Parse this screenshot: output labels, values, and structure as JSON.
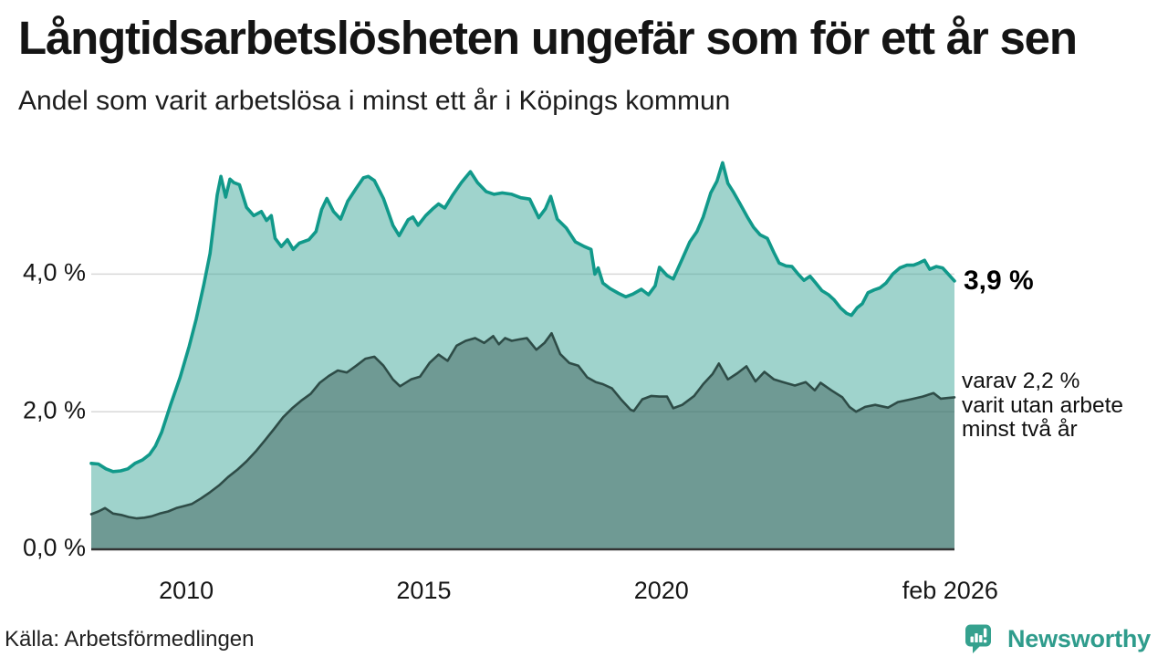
{
  "header": {
    "title": "Långtidsarbetslösheten ungefär som för ett år sen",
    "subtitle": "Andel som varit arbetslösa i minst ett år i Köpings kommun"
  },
  "chart_data": {
    "type": "area",
    "subtype": "overlapping-areas",
    "title": "Långtidsarbetslösheten ungefär som för ett år sen",
    "xlabel": "",
    "ylabel": "",
    "unit": "%",
    "x_range": [
      2008.0,
      2026.17
    ],
    "ylim": [
      0,
      5.9
    ],
    "grid": "horizontal",
    "x_axis": {
      "ticks": [
        {
          "label": "2010",
          "year": 2010
        },
        {
          "label": "2015",
          "year": 2015
        },
        {
          "label": "2020",
          "year": 2020
        },
        {
          "label": "feb 2026",
          "year": 2026.08
        }
      ]
    },
    "y_axis": {
      "ticks": [
        {
          "label": "0,0 %",
          "value": 0
        },
        {
          "label": "2,0 %",
          "value": 2
        },
        {
          "label": "4,0 %",
          "value": 4
        }
      ]
    },
    "series": [
      {
        "name": "arbetslösa minst ett år",
        "line_color": "#11998a",
        "fill_color": "rgba(70,170,158,0.52)",
        "line_width": 3.6,
        "latest_value": "3,9 %",
        "x": [
          2008.0,
          2008.15,
          2008.31,
          2008.46,
          2008.62,
          2008.77,
          2008.92,
          2009.08,
          2009.23,
          2009.35,
          2009.48,
          2009.67,
          2009.87,
          2010.06,
          2010.21,
          2010.37,
          2010.5,
          2010.65,
          2010.73,
          2010.83,
          2010.92,
          2011.0,
          2011.12,
          2011.27,
          2011.42,
          2011.58,
          2011.69,
          2011.79,
          2011.87,
          2012.0,
          2012.13,
          2012.25,
          2012.38,
          2012.58,
          2012.73,
          2012.85,
          2012.96,
          2013.1,
          2013.25,
          2013.4,
          2013.58,
          2013.73,
          2013.83,
          2013.96,
          2014.15,
          2014.35,
          2014.48,
          2014.67,
          2014.77,
          2014.88,
          2015.04,
          2015.19,
          2015.31,
          2015.44,
          2015.6,
          2015.79,
          2015.98,
          2016.13,
          2016.31,
          2016.48,
          2016.65,
          2016.85,
          2017.04,
          2017.23,
          2017.42,
          2017.56,
          2017.67,
          2017.81,
          2018.0,
          2018.19,
          2018.38,
          2018.52,
          2018.6,
          2018.67,
          2018.77,
          2018.92,
          2019.1,
          2019.25,
          2019.4,
          2019.58,
          2019.73,
          2019.87,
          2019.96,
          2020.12,
          2020.25,
          2020.44,
          2020.6,
          2020.75,
          2020.88,
          2021.04,
          2021.17,
          2021.29,
          2021.4,
          2021.52,
          2021.65,
          2021.81,
          2021.94,
          2022.08,
          2022.23,
          2022.37,
          2022.48,
          2022.62,
          2022.75,
          2022.88,
          2023.0,
          2023.13,
          2023.25,
          2023.38,
          2023.52,
          2023.63,
          2023.77,
          2023.9,
          2024.0,
          2024.12,
          2024.23,
          2024.35,
          2024.48,
          2024.6,
          2024.73,
          2024.87,
          2025.02,
          2025.17,
          2025.31,
          2025.42,
          2025.54,
          2025.65,
          2025.79,
          2025.92,
          2026.04,
          2026.17
        ],
        "values": [
          1.25,
          1.24,
          1.17,
          1.13,
          1.14,
          1.17,
          1.25,
          1.3,
          1.38,
          1.5,
          1.7,
          2.1,
          2.5,
          2.95,
          3.35,
          3.85,
          4.3,
          5.15,
          5.42,
          5.12,
          5.38,
          5.33,
          5.3,
          4.97,
          4.85,
          4.91,
          4.78,
          4.85,
          4.52,
          4.4,
          4.5,
          4.36,
          4.45,
          4.5,
          4.62,
          4.94,
          5.1,
          4.91,
          4.8,
          5.06,
          5.25,
          5.4,
          5.42,
          5.36,
          5.1,
          4.71,
          4.56,
          4.79,
          4.83,
          4.71,
          4.85,
          4.95,
          5.02,
          4.96,
          5.14,
          5.33,
          5.49,
          5.33,
          5.2,
          5.16,
          5.18,
          5.16,
          5.11,
          5.09,
          4.82,
          4.95,
          5.13,
          4.8,
          4.67,
          4.47,
          4.4,
          4.36,
          4.0,
          4.09,
          3.87,
          3.79,
          3.72,
          3.67,
          3.71,
          3.78,
          3.7,
          3.83,
          4.1,
          3.98,
          3.93,
          4.22,
          4.47,
          4.62,
          4.83,
          5.18,
          5.35,
          5.62,
          5.32,
          5.19,
          5.03,
          4.83,
          4.68,
          4.57,
          4.52,
          4.31,
          4.16,
          4.12,
          4.11,
          4.0,
          3.91,
          3.97,
          3.87,
          3.76,
          3.7,
          3.63,
          3.51,
          3.43,
          3.4,
          3.51,
          3.57,
          3.73,
          3.77,
          3.8,
          3.87,
          4.0,
          4.09,
          4.13,
          4.13,
          4.16,
          4.2,
          4.07,
          4.11,
          4.09,
          4.0,
          3.9
        ]
      },
      {
        "name": "varav utan arbete minst två år",
        "line_color": "#2e4c47",
        "fill_color": "rgba(45,77,72,0.42)",
        "line_width": 2.6,
        "latest_value": "2,2 %",
        "x": [
          2008.0,
          2008.15,
          2008.29,
          2008.46,
          2008.63,
          2008.79,
          2008.96,
          2009.12,
          2009.27,
          2009.44,
          2009.62,
          2009.79,
          2009.96,
          2010.12,
          2010.31,
          2010.5,
          2010.69,
          2010.88,
          2011.08,
          2011.27,
          2011.46,
          2011.65,
          2011.85,
          2012.04,
          2012.23,
          2012.42,
          2012.62,
          2012.81,
          2013.0,
          2013.19,
          2013.38,
          2013.58,
          2013.77,
          2013.96,
          2014.15,
          2014.35,
          2014.5,
          2014.73,
          2014.92,
          2015.12,
          2015.31,
          2015.5,
          2015.69,
          2015.88,
          2016.08,
          2016.27,
          2016.46,
          2016.58,
          2016.71,
          2016.85,
          2017.0,
          2017.17,
          2017.37,
          2017.54,
          2017.69,
          2017.87,
          2018.06,
          2018.25,
          2018.44,
          2018.62,
          2018.77,
          2018.96,
          2019.15,
          2019.35,
          2019.42,
          2019.6,
          2019.79,
          2019.96,
          2020.12,
          2020.25,
          2020.44,
          2020.69,
          2020.88,
          2021.08,
          2021.21,
          2021.4,
          2021.6,
          2021.79,
          2021.98,
          2022.17,
          2022.37,
          2022.56,
          2022.81,
          2023.04,
          2023.23,
          2023.35,
          2023.58,
          2023.81,
          2023.96,
          2024.1,
          2024.29,
          2024.5,
          2024.77,
          2024.98,
          2025.25,
          2025.5,
          2025.73,
          2025.88,
          2026.04,
          2026.17
        ],
        "values": [
          0.51,
          0.55,
          0.6,
          0.52,
          0.5,
          0.47,
          0.45,
          0.46,
          0.48,
          0.52,
          0.55,
          0.6,
          0.63,
          0.66,
          0.74,
          0.83,
          0.93,
          1.05,
          1.16,
          1.28,
          1.42,
          1.58,
          1.75,
          1.92,
          2.05,
          2.16,
          2.26,
          2.42,
          2.52,
          2.6,
          2.57,
          2.67,
          2.77,
          2.8,
          2.67,
          2.47,
          2.37,
          2.47,
          2.51,
          2.71,
          2.83,
          2.74,
          2.96,
          3.03,
          3.07,
          3.0,
          3.1,
          2.98,
          3.07,
          3.03,
          3.05,
          3.07,
          2.9,
          3.0,
          3.14,
          2.84,
          2.71,
          2.67,
          2.5,
          2.43,
          2.4,
          2.34,
          2.18,
          2.03,
          2.01,
          2.18,
          2.23,
          2.22,
          2.22,
          2.05,
          2.1,
          2.23,
          2.4,
          2.55,
          2.7,
          2.47,
          2.56,
          2.66,
          2.44,
          2.58,
          2.47,
          2.43,
          2.38,
          2.43,
          2.31,
          2.42,
          2.31,
          2.21,
          2.07,
          2.0,
          2.07,
          2.1,
          2.06,
          2.14,
          2.18,
          2.22,
          2.27,
          2.19,
          2.2,
          2.21
        ]
      }
    ],
    "annotations": {
      "latest": {
        "text": "3,9 %"
      },
      "secondary": {
        "line1": "varav 2,2 %",
        "line2": "varit utan arbete",
        "line3": "minst två år"
      }
    },
    "legend": "none"
  },
  "colors": {
    "accent_teal": "#11998a",
    "light_fill": "#a5d3cd",
    "dark_fill": "#6f9a94",
    "dark_line": "#2e4c47",
    "gridline": "#d8d8d8",
    "baseline": "#333333",
    "brand_teal": "#2f9c8c"
  },
  "footer": {
    "source": "Källa: Arbetsförmedlingen",
    "brand": "Newsworthy"
  }
}
